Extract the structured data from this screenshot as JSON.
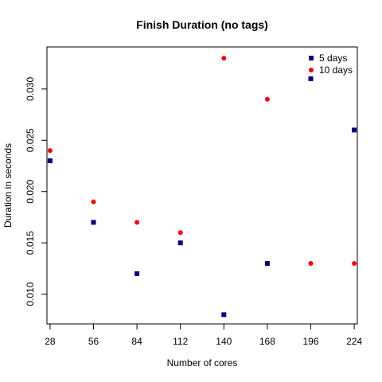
{
  "chart_data": {
    "type": "scatter",
    "title": "Finish Duration (no tags)",
    "xlabel": "Number of cores",
    "ylabel": "Duration in seconds",
    "x": [
      28,
      56,
      84,
      112,
      140,
      168,
      196,
      224
    ],
    "xlim": [
      26,
      226
    ],
    "ylim": [
      0.0071,
      0.0341
    ],
    "yticks": [
      "0.010",
      "0.015",
      "0.020",
      "0.025",
      "0.030"
    ],
    "legend_position": "top-right",
    "series": [
      {
        "name": "5 days",
        "marker": "square",
        "color": "#000080",
        "values": [
          0.023,
          0.017,
          0.012,
          0.015,
          0.008,
          0.013,
          0.031,
          0.026
        ]
      },
      {
        "name": "10 days",
        "marker": "circle",
        "color": "#ff0000",
        "values": [
          0.024,
          0.019,
          0.017,
          0.016,
          0.033,
          0.029,
          0.013,
          0.013
        ]
      }
    ]
  }
}
